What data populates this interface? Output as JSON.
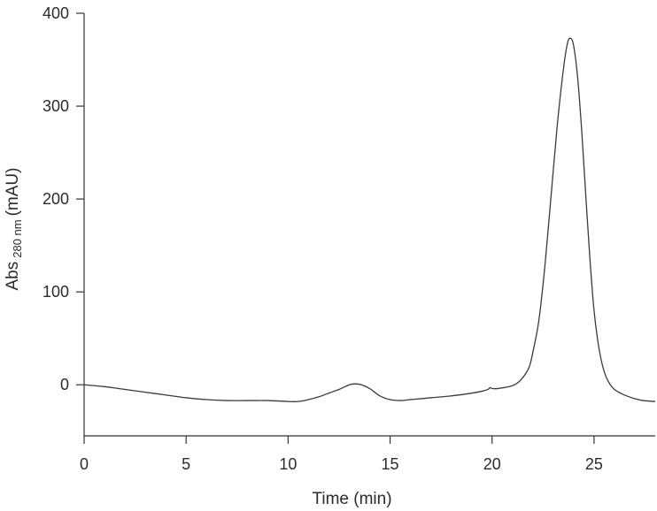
{
  "chart_data": {
    "type": "line",
    "xlabel": "Time (min)",
    "ylabel": {
      "main": "Abs",
      "subscript": "280 nm",
      "unit": "(mAU)"
    },
    "xlim": [
      0,
      28
    ],
    "ylim": [
      -55,
      400
    ],
    "x_ticks": [
      0,
      5,
      10,
      15,
      20,
      25
    ],
    "y_ticks": [
      0,
      100,
      200,
      300,
      400
    ],
    "x_tick_labels": [
      "0",
      "5",
      "10",
      "15",
      "20",
      "25"
    ],
    "y_tick_labels": [
      "0",
      "100",
      "200",
      "300",
      "400"
    ],
    "grid": false,
    "legend": "none",
    "line_color": "#3a3a3a",
    "series": [
      {
        "x": [
          0,
          1,
          2,
          3,
          4,
          5,
          6,
          7,
          8,
          9,
          10,
          10.5,
          11,
          11.5,
          12,
          12.5,
          13,
          13.3,
          13.6,
          14,
          14.5,
          15,
          15.5,
          16,
          17,
          18,
          19,
          19.5,
          19.8,
          19.9,
          20.0,
          20.3,
          21,
          21.4,
          21.8,
          22.0,
          22.3,
          22.6,
          22.9,
          23.2,
          23.5,
          23.7,
          23.85,
          24.0,
          24.2,
          24.4,
          24.6,
          24.8,
          25.0,
          25.2,
          25.4,
          25.6,
          25.8,
          26.0,
          26.3,
          26.6,
          27.0,
          27.4,
          28.0
        ],
        "y": [
          0,
          -2,
          -5,
          -8,
          -11,
          -14,
          -16,
          -17,
          -17,
          -17,
          -18,
          -18,
          -16,
          -13,
          -9,
          -5,
          0,
          1,
          0,
          -4,
          -12,
          -16,
          -17,
          -16,
          -14,
          -12,
          -9,
          -7,
          -5,
          -3,
          -4,
          -4,
          -1,
          5,
          18,
          35,
          70,
          130,
          205,
          280,
          340,
          368,
          373,
          365,
          330,
          272,
          202,
          135,
          80,
          45,
          22,
          8,
          0,
          -5,
          -9,
          -12,
          -15,
          -17,
          -18
        ]
      }
    ]
  }
}
